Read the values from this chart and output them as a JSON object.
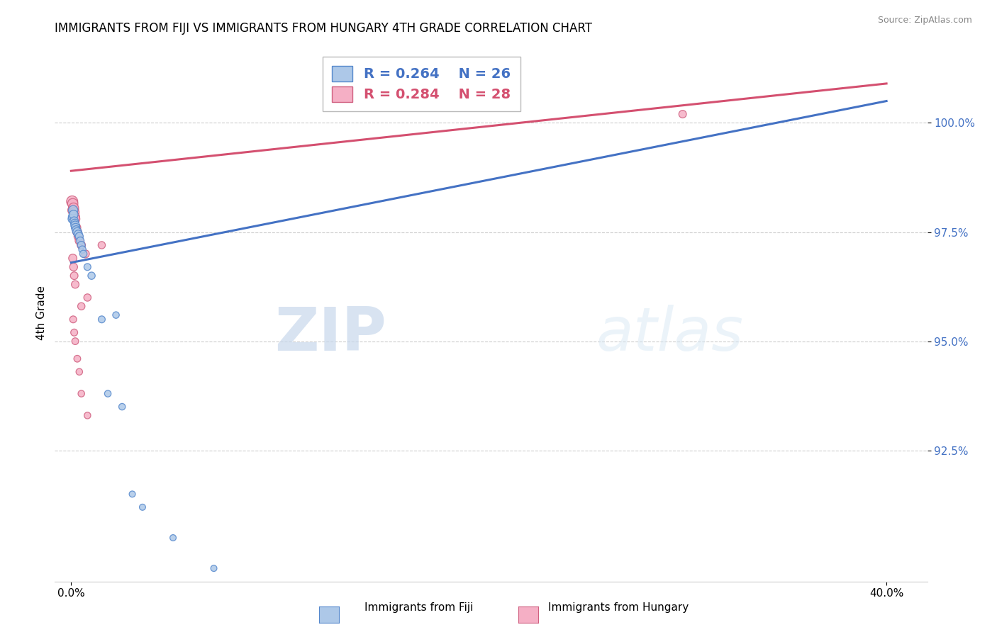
{
  "title": "IMMIGRANTS FROM FIJI VS IMMIGRANTS FROM HUNGARY 4TH GRADE CORRELATION CHART",
  "source": "Source: ZipAtlas.com",
  "ylabel": "4th Grade",
  "ytick_vals": [
    92.5,
    95.0,
    97.5,
    100.0
  ],
  "ytick_labels": [
    "92.5%",
    "95.0%",
    "97.5%",
    "100.0%"
  ],
  "ymin": 89.5,
  "ymax": 101.8,
  "xmin": -0.8,
  "xmax": 42.0,
  "xtick_vals": [
    0.0,
    40.0
  ],
  "xtick_labels": [
    "0.0%",
    "40.0%"
  ],
  "fiji_color": "#adc8e8",
  "hungary_color": "#f5afc5",
  "fiji_edge_color": "#5588cc",
  "hungary_edge_color": "#d06080",
  "trendline_fiji_color": "#4472c4",
  "trendline_hungary_color": "#d45070",
  "legend_fiji_r": "0.264",
  "legend_fiji_n": "26",
  "legend_hungary_r": "0.284",
  "legend_hungary_n": "28",
  "legend_fiji_label": "Immigrants from Fiji",
  "legend_hungary_label": "Immigrants from Hungary",
  "fiji_x": [
    0.05,
    0.08,
    0.1,
    0.12,
    0.15,
    0.18,
    0.2,
    0.22,
    0.25,
    0.3,
    0.35,
    0.4,
    0.45,
    0.5,
    0.55,
    0.6,
    0.8,
    1.0,
    1.5,
    1.8,
    2.5,
    3.0,
    3.5,
    5.0,
    7.0,
    2.2
  ],
  "fiji_y": [
    97.8,
    97.85,
    98.0,
    97.9,
    97.75,
    97.7,
    97.65,
    97.6,
    97.55,
    97.5,
    97.45,
    97.4,
    97.3,
    97.2,
    97.1,
    97.0,
    96.7,
    96.5,
    95.5,
    93.8,
    93.5,
    91.5,
    91.2,
    90.5,
    89.8,
    95.6
  ],
  "fiji_sizes": [
    70,
    80,
    90,
    80,
    75,
    70,
    80,
    75,
    70,
    80,
    70,
    65,
    60,
    60,
    55,
    55,
    50,
    55,
    50,
    45,
    45,
    40,
    40,
    40,
    40,
    45
  ],
  "hungary_x": [
    0.05,
    0.08,
    0.1,
    0.12,
    0.15,
    0.18,
    0.2,
    0.25,
    0.3,
    0.35,
    0.4,
    0.5,
    0.7,
    0.08,
    0.12,
    0.15,
    0.2,
    0.5,
    0.8,
    1.5,
    0.1,
    0.15,
    0.2,
    0.3,
    0.4,
    0.5,
    0.8,
    30.0
  ],
  "hungary_y": [
    98.2,
    98.15,
    98.0,
    98.05,
    97.95,
    97.85,
    97.8,
    97.6,
    97.5,
    97.4,
    97.3,
    97.2,
    97.0,
    96.9,
    96.7,
    96.5,
    96.3,
    95.8,
    96.0,
    97.2,
    95.5,
    95.2,
    95.0,
    94.6,
    94.3,
    93.8,
    93.3,
    100.2
  ],
  "hungary_sizes": [
    130,
    110,
    120,
    105,
    100,
    95,
    90,
    85,
    80,
    75,
    70,
    70,
    65,
    70,
    65,
    60,
    60,
    55,
    55,
    55,
    50,
    50,
    48,
    48,
    45,
    45,
    45,
    60
  ],
  "trendline_fiji_x0": 0.0,
  "trendline_fiji_x1": 40.0,
  "trendline_fiji_y0": 96.8,
  "trendline_fiji_y1": 100.5,
  "trendline_hungary_x0": 0.0,
  "trendline_hungary_x1": 40.0,
  "trendline_hungary_y0": 98.9,
  "trendline_hungary_y1": 100.9,
  "watermark_zip": "ZIP",
  "watermark_atlas": "atlas",
  "background_color": "#ffffff",
  "grid_color": "#cccccc",
  "ytick_color": "#4472c4",
  "title_fontsize": 12,
  "tick_fontsize": 11
}
